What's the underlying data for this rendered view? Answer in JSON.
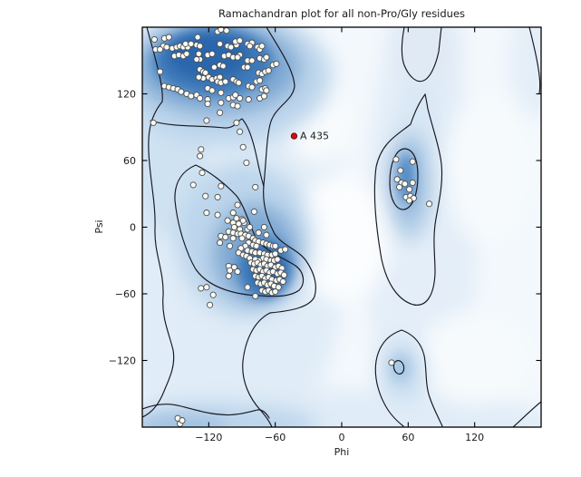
{
  "chart_data": {
    "type": "scatter",
    "title": "Ramachandran plot for all non-Pro/Gly residues",
    "xlabel": "Phi",
    "ylabel": "Psi",
    "xlim": [
      -180,
      180
    ],
    "ylim": [
      -180,
      180
    ],
    "xticks": [
      -120,
      -60,
      0,
      60,
      120
    ],
    "yticks": [
      -120,
      -60,
      0,
      60,
      120
    ],
    "grid": false,
    "legend": "none",
    "background_style": "blue kernel-density shading with dark contour lines (favored / allowed Ramachandran regions)",
    "density_regions": [
      "beta-sheet (upper left)",
      "alpha-helix (center left)",
      "left-handed-alpha (center right)",
      "lower-right minor basin",
      "bottom edge band"
    ],
    "series": [
      {
        "name": "residues",
        "marker": "circle",
        "marker_fill": "#fbfbf6",
        "marker_stroke": "#4d4d4d",
        "points": [
          [
            -169,
            169
          ],
          [
            -160,
            170
          ],
          [
            -156,
            171
          ],
          [
            -161,
            163
          ],
          [
            -158,
            162
          ],
          [
            -168,
            160
          ],
          [
            -164,
            160
          ],
          [
            -153,
            161
          ],
          [
            -149,
            162
          ],
          [
            -146,
            163
          ],
          [
            -143,
            162
          ],
          [
            -139,
            162
          ],
          [
            -141,
            165
          ],
          [
            -136,
            165
          ],
          [
            -130,
            171
          ],
          [
            -131,
            164
          ],
          [
            -128,
            163
          ],
          [
            -151,
            154
          ],
          [
            -147,
            155
          ],
          [
            -143,
            154
          ],
          [
            -140,
            156
          ],
          [
            -129,
            156
          ],
          [
            -128,
            151
          ],
          [
            -131,
            151
          ],
          [
            -121,
            155
          ],
          [
            -117,
            156
          ],
          [
            -112,
            176
          ],
          [
            -109,
            178
          ],
          [
            -104,
            177
          ],
          [
            -110,
            165
          ],
          [
            -103,
            163
          ],
          [
            -100,
            162
          ],
          [
            -95,
            164
          ],
          [
            -106,
            154
          ],
          [
            -102,
            155
          ],
          [
            -98,
            153
          ],
          [
            -110,
            146
          ],
          [
            -107,
            145
          ],
          [
            -115,
            144
          ],
          [
            -128,
            142
          ],
          [
            -125,
            140
          ],
          [
            -123,
            139
          ],
          [
            -120,
            135
          ],
          [
            -125,
            134
          ],
          [
            -129,
            135
          ],
          [
            -117,
            133
          ],
          [
            -113,
            134
          ],
          [
            -110,
            135
          ],
          [
            -112,
            131
          ],
          [
            -109,
            130
          ],
          [
            -105,
            131
          ],
          [
            -98,
            133
          ],
          [
            -95,
            131
          ],
          [
            -164,
            140
          ],
          [
            -160,
            127
          ],
          [
            -156,
            126
          ],
          [
            -152,
            125
          ],
          [
            -148,
            124
          ],
          [
            -145,
            122
          ],
          [
            -140,
            120
          ],
          [
            -136,
            118
          ],
          [
            -131,
            119
          ],
          [
            -121,
            125
          ],
          [
            -117,
            123
          ],
          [
            -109,
            121
          ],
          [
            -102,
            116
          ],
          [
            -98,
            117
          ],
          [
            -96,
            119
          ],
          [
            -121,
            115
          ],
          [
            -128,
            116
          ],
          [
            -96,
            167
          ],
          [
            -92,
            168
          ],
          [
            -85,
            165
          ],
          [
            -81,
            166
          ],
          [
            -83,
            163
          ],
          [
            -76,
            162
          ],
          [
            -74,
            160
          ],
          [
            -72,
            163
          ],
          [
            -92,
            155
          ],
          [
            -94,
            153
          ],
          [
            -85,
            150
          ],
          [
            -81,
            150
          ],
          [
            -74,
            152
          ],
          [
            -70,
            151
          ],
          [
            -68,
            153
          ],
          [
            -88,
            144
          ],
          [
            -85,
            144
          ],
          [
            -75,
            139
          ],
          [
            -72,
            138
          ],
          [
            -69,
            140
          ],
          [
            -66,
            141
          ],
          [
            -62,
            146
          ],
          [
            -59,
            147
          ],
          [
            -77,
            131
          ],
          [
            -74,
            132
          ],
          [
            -93,
            130
          ],
          [
            -84,
            127
          ],
          [
            -81,
            126
          ],
          [
            -72,
            124
          ],
          [
            -69,
            125
          ],
          [
            -68,
            123
          ],
          [
            -92,
            116
          ],
          [
            -84,
            115
          ],
          [
            -74,
            116
          ],
          [
            -70,
            118
          ],
          [
            -121,
            111
          ],
          [
            -109,
            112
          ],
          [
            -98,
            110
          ],
          [
            -94,
            109
          ],
          [
            -110,
            103
          ],
          [
            -122,
            96
          ],
          [
            -95,
            94
          ],
          [
            -92,
            86
          ],
          [
            -89,
            72
          ],
          [
            -86,
            58
          ],
          [
            -127,
            70
          ],
          [
            -128,
            64
          ],
          [
            -170,
            94
          ],
          [
            -126,
            49
          ],
          [
            -134,
            38
          ],
          [
            -109,
            37
          ],
          [
            -123,
            28
          ],
          [
            -112,
            27
          ],
          [
            -94,
            20
          ],
          [
            -122,
            13
          ],
          [
            -112,
            11
          ],
          [
            -90,
            7
          ],
          [
            -103,
            6
          ],
          [
            -98,
            4
          ],
          [
            -93,
            3
          ],
          [
            -88,
            4
          ],
          [
            -96,
            -1
          ],
          [
            -92,
            -2
          ],
          [
            -85,
            -2
          ],
          [
            -83,
            0
          ],
          [
            -102,
            -4
          ],
          [
            -98,
            -5
          ],
          [
            -94,
            -6
          ],
          [
            -91,
            -6
          ],
          [
            -87,
            -7
          ],
          [
            -84,
            -8
          ],
          [
            -109,
            -8
          ],
          [
            -105,
            -9
          ],
          [
            -78,
            36
          ],
          [
            -79,
            14
          ],
          [
            -98,
            13
          ],
          [
            -95,
            8
          ],
          [
            -89,
            6
          ],
          [
            -97,
            0
          ],
          [
            -70,
            0
          ],
          [
            -75,
            -5
          ],
          [
            -68,
            -7
          ],
          [
            -98,
            -10
          ],
          [
            -90,
            -10
          ],
          [
            -80,
            -10
          ],
          [
            -78,
            -12
          ],
          [
            -75,
            -13
          ],
          [
            -71,
            -14
          ],
          [
            -68,
            -15
          ],
          [
            -65,
            -16
          ],
          [
            -62,
            -17
          ],
          [
            -84,
            -14
          ],
          [
            -80,
            -16
          ],
          [
            -77,
            -17
          ],
          [
            -87,
            -17
          ],
          [
            -91,
            -19
          ],
          [
            -85,
            -21
          ],
          [
            -81,
            -22
          ],
          [
            -78,
            -23
          ],
          [
            -74,
            -23
          ],
          [
            -70,
            -24
          ],
          [
            -67,
            -25
          ],
          [
            -63,
            -25
          ],
          [
            -60,
            -24
          ],
          [
            -93,
            -23
          ],
          [
            -89,
            -25
          ],
          [
            -86,
            -26
          ],
          [
            -71,
            -28
          ],
          [
            -68,
            -29
          ],
          [
            -64,
            -30
          ],
          [
            -75,
            -30
          ],
          [
            -78,
            -29
          ],
          [
            -83,
            -28
          ],
          [
            -61,
            -30
          ],
          [
            -58,
            -29
          ],
          [
            -110,
            -14
          ],
          [
            -101,
            -17
          ],
          [
            -60,
            -17
          ],
          [
            -55,
            -21
          ],
          [
            -51,
            -20
          ],
          [
            -102,
            -35
          ],
          [
            -97,
            -36
          ],
          [
            -101,
            -39
          ],
          [
            -94,
            -40
          ],
          [
            -102,
            -44
          ],
          [
            -85,
            -54
          ],
          [
            -78,
            -62
          ],
          [
            -127,
            -55
          ],
          [
            -122,
            -54
          ],
          [
            -116,
            -61
          ],
          [
            -119,
            -70
          ],
          [
            -82,
            -32
          ],
          [
            -79,
            -33
          ],
          [
            -76,
            -32
          ],
          [
            -73,
            -34
          ],
          [
            -70,
            -33
          ],
          [
            -67,
            -35
          ],
          [
            -64,
            -34
          ],
          [
            -60,
            -36
          ],
          [
            -57,
            -35
          ],
          [
            -54,
            -37
          ],
          [
            -80,
            -38
          ],
          [
            -77,
            -39
          ],
          [
            -74,
            -38
          ],
          [
            -71,
            -40
          ],
          [
            -68,
            -39
          ],
          [
            -65,
            -41
          ],
          [
            -62,
            -40
          ],
          [
            -58,
            -42
          ],
          [
            -55,
            -41
          ],
          [
            -52,
            -43
          ],
          [
            -78,
            -44
          ],
          [
            -75,
            -45
          ],
          [
            -72,
            -44
          ],
          [
            -69,
            -46
          ],
          [
            -66,
            -45
          ],
          [
            -63,
            -47
          ],
          [
            -59,
            -48
          ],
          [
            -56,
            -47
          ],
          [
            -53,
            -49
          ],
          [
            -76,
            -50
          ],
          [
            -73,
            -51
          ],
          [
            -70,
            -50
          ],
          [
            -67,
            -52
          ],
          [
            -64,
            -51
          ],
          [
            -61,
            -53
          ],
          [
            -57,
            -54
          ],
          [
            -72,
            -57
          ],
          [
            -69,
            -58
          ],
          [
            -66,
            -57
          ],
          [
            -63,
            -59
          ],
          [
            -60,
            -58
          ],
          [
            49,
            61
          ],
          [
            64,
            59
          ],
          [
            53,
            51
          ],
          [
            50,
            43
          ],
          [
            54,
            40
          ],
          [
            52,
            36
          ],
          [
            57,
            39
          ],
          [
            64,
            40
          ],
          [
            61,
            34
          ],
          [
            58,
            27
          ],
          [
            62,
            28
          ],
          [
            65,
            26
          ],
          [
            61,
            24
          ],
          [
            79,
            21
          ],
          [
            45,
            -122
          ],
          [
            -148,
            -172
          ],
          [
            -146,
            -177
          ],
          [
            -144,
            -174
          ]
        ]
      },
      {
        "name": "highlighted-residue",
        "label": "A 435",
        "marker": "circle",
        "marker_fill": "#d01010",
        "marker_stroke": "#700000",
        "points": [
          [
            -43,
            82
          ]
        ]
      }
    ]
  },
  "colors": {
    "contour_line": "#16161f",
    "axis": "#000000",
    "density_dark": "#2a66ab",
    "density_mid": "#7fa9d3",
    "density_light": "#dce9f6",
    "plot_background": "#f3f8fc"
  }
}
